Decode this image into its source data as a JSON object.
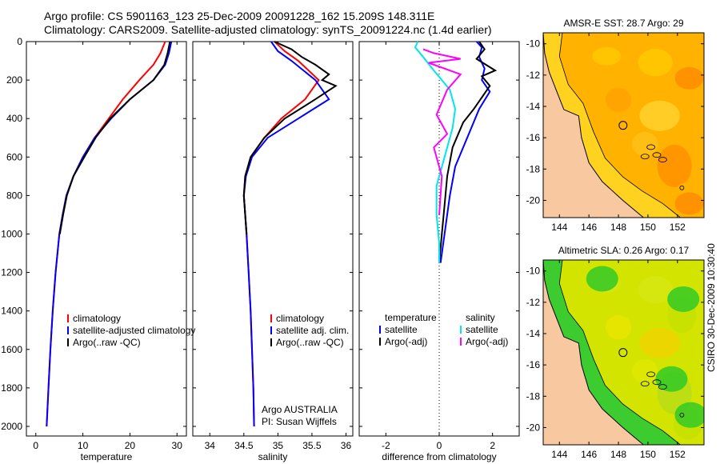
{
  "title": {
    "line1": "Argo profile: CS 5901163_123 25-Dec-2009 20091228_162 15.209S 148.311E",
    "line2": "Climatology: CARS2009. Satellite-adjusted climatology: synTS_20091224.nc (1.4d earlier)"
  },
  "credit": "CSIRO 30-Dec-2009 10:30:40",
  "colors": {
    "climatology": "#ff0000",
    "satellite": "#0000ff",
    "argo": "#000000",
    "sal_sat": "#00e5ee",
    "sal_argo": "#ff00ff"
  },
  "chart_data": [
    {
      "type": "line",
      "panel": "temperature",
      "xlabel": "temperature",
      "ylabel": "",
      "xlim": [
        -2,
        32
      ],
      "ylim": [
        2050,
        0
      ],
      "xticks": [
        0,
        10,
        20,
        30
      ],
      "yticks": [
        0,
        200,
        400,
        600,
        800,
        1000,
        1200,
        1400,
        1600,
        1800,
        2000
      ],
      "legend": [
        "climatology",
        "satellite-adjusted climatology",
        "Argo(..raw -QC)"
      ],
      "series": [
        {
          "name": "climatology",
          "color": "#ff0000",
          "x": [
            27.5,
            26.5,
            25,
            22,
            18.5,
            15.5,
            12.5,
            10,
            8,
            6.5,
            5.7,
            5,
            4.2,
            3.6,
            3.1,
            2.7,
            2.3
          ],
          "y": [
            0,
            60,
            120,
            200,
            300,
            400,
            500,
            600,
            700,
            800,
            900,
            1000,
            1200,
            1400,
            1600,
            1800,
            2000
          ]
        },
        {
          "name": "satellite-adjusted climatology",
          "color": "#0000ff",
          "x": [
            28.8,
            28.3,
            27.5,
            25,
            20,
            16,
            12.5,
            10,
            8,
            6.5,
            5.7,
            5,
            4.2,
            3.6,
            3.1,
            2.7,
            2.3
          ],
          "y": [
            0,
            60,
            120,
            200,
            300,
            400,
            500,
            600,
            700,
            800,
            900,
            1000,
            1200,
            1400,
            1600,
            1800,
            2000
          ]
        },
        {
          "name": "Argo(..raw -QC)",
          "color": "#000000",
          "x": [
            28.5,
            28,
            27.3,
            25,
            20,
            15.8,
            12.7,
            10.3,
            8,
            6.6,
            5.8,
            5.1
          ],
          "y": [
            0,
            60,
            120,
            200,
            300,
            400,
            500,
            600,
            700,
            800,
            900,
            1000
          ]
        }
      ]
    },
    {
      "type": "line",
      "panel": "salinity",
      "xlabel": "salinity",
      "xlim": [
        33.75,
        36.1
      ],
      "ylim": [
        2050,
        0
      ],
      "xticks": [
        34,
        34.5,
        35,
        35.5,
        36
      ],
      "legend": [
        "climatology",
        "satellite adj. clim.",
        "Argo(..raw -QC)"
      ],
      "annotation": [
        "Argo AUSTRALIA",
        "PI: Susan Wijffels"
      ],
      "series": [
        {
          "name": "climatology",
          "color": "#ff0000",
          "x": [
            34.95,
            35.1,
            35.3,
            35.6,
            35.4,
            35.05,
            34.8,
            34.6,
            34.52,
            34.5,
            34.52,
            34.54,
            34.57,
            34.6,
            34.62,
            34.64,
            34.65
          ],
          "y": [
            0,
            50,
            100,
            200,
            300,
            400,
            500,
            600,
            700,
            800,
            900,
            1000,
            1200,
            1400,
            1600,
            1800,
            2000
          ]
        },
        {
          "name": "satellite adj. clim.",
          "color": "#0000ff",
          "x": [
            34.9,
            35.0,
            35.2,
            35.55,
            35.75,
            35.3,
            34.85,
            34.62,
            34.53,
            34.5,
            34.52,
            34.54,
            34.57,
            34.6,
            34.62,
            34.64,
            34.65
          ],
          "y": [
            0,
            50,
            100,
            200,
            300,
            400,
            500,
            600,
            700,
            800,
            900,
            1000,
            1200,
            1400,
            1600,
            1800,
            2000
          ]
        },
        {
          "name": "Argo(..raw -QC)",
          "color": "#000000",
          "x": [
            34.95,
            35.2,
            35.35,
            35.55,
            35.75,
            35.65,
            35.85,
            35.55,
            35.1,
            34.8,
            34.6,
            34.52,
            34.5,
            34.52,
            34.54
          ],
          "y": [
            0,
            40,
            80,
            120,
            170,
            200,
            230,
            300,
            400,
            500,
            600,
            700,
            800,
            900,
            1000
          ]
        }
      ]
    },
    {
      "type": "line",
      "panel": "difference",
      "xlabel": "difference from climatology",
      "xlim": [
        -3,
        3
      ],
      "ylim": [
        2050,
        0
      ],
      "xticks": [
        -2,
        0,
        2
      ],
      "legend_headers": [
        "temperature",
        "salinity"
      ],
      "legend": [
        "satellite",
        "Argo(-adj)",
        "satellite",
        "Argo(-adj)"
      ],
      "series": [
        {
          "name": "temperature satellite",
          "color": "#0000ff",
          "x": [
            1.4,
            1.6,
            1.5,
            1.7,
            1.6,
            1.9,
            1.5,
            1.2,
            0.9,
            0.6,
            0.4,
            0.2,
            0.05
          ],
          "y": [
            0,
            30,
            80,
            140,
            200,
            260,
            350,
            450,
            550,
            650,
            800,
            1000,
            1150
          ]
        },
        {
          "name": "temperature Argo(-adj)",
          "color": "#000000",
          "x": [
            1.5,
            1.7,
            1.4,
            2.1,
            1.6,
            1.9,
            1.3,
            0.9,
            0.5,
            0.3,
            0.2,
            0.1,
            0.0
          ],
          "y": [
            0,
            40,
            90,
            150,
            180,
            230,
            350,
            420,
            550,
            700,
            850,
            1000,
            1150
          ]
        },
        {
          "name": "salinity satellite",
          "color": "#00e5ee",
          "x": [
            -0.8,
            -0.9,
            -0.6,
            -0.2,
            0.4,
            0.6,
            0.5,
            0.2,
            -0.1,
            -0.1,
            0.0,
            0.0
          ],
          "y": [
            0,
            30,
            80,
            150,
            250,
            350,
            450,
            600,
            750,
            900,
            1050,
            1150
          ]
        },
        {
          "name": "salinity Argo(-adj)",
          "color": "#ff00ff",
          "x": [
            -0.6,
            -0.2,
            0.8,
            -0.4,
            0.8,
            0.3,
            -0.1,
            0.3,
            -0.2,
            0.1,
            0.0
          ],
          "y": [
            40,
            60,
            90,
            110,
            170,
            250,
            380,
            480,
            550,
            700,
            900
          ]
        }
      ]
    },
    {
      "type": "heatmap",
      "panel": "sst-map",
      "title": "AMSR-E SST: 28.7  Argo: 29",
      "xticks": [
        144,
        146,
        148,
        150,
        152
      ],
      "yticks": [
        -10,
        -12,
        -14,
        -16,
        -18,
        -20
      ],
      "xlim": [
        142.9,
        153.8
      ],
      "ylim": [
        -21.1,
        -9.3
      ],
      "marker": {
        "lon": 148.311,
        "lat": -15.209
      }
    },
    {
      "type": "heatmap",
      "panel": "sla-map",
      "title": "Altimetric SLA: 0.26  Argo: 0.17",
      "xticks": [
        144,
        146,
        148,
        150,
        152
      ],
      "yticks": [
        -10,
        -12,
        -14,
        -16,
        -18,
        -20
      ],
      "xlim": [
        142.9,
        153.8
      ],
      "ylim": [
        -21.1,
        -9.3
      ],
      "marker": {
        "lon": 148.311,
        "lat": -15.209
      }
    }
  ]
}
